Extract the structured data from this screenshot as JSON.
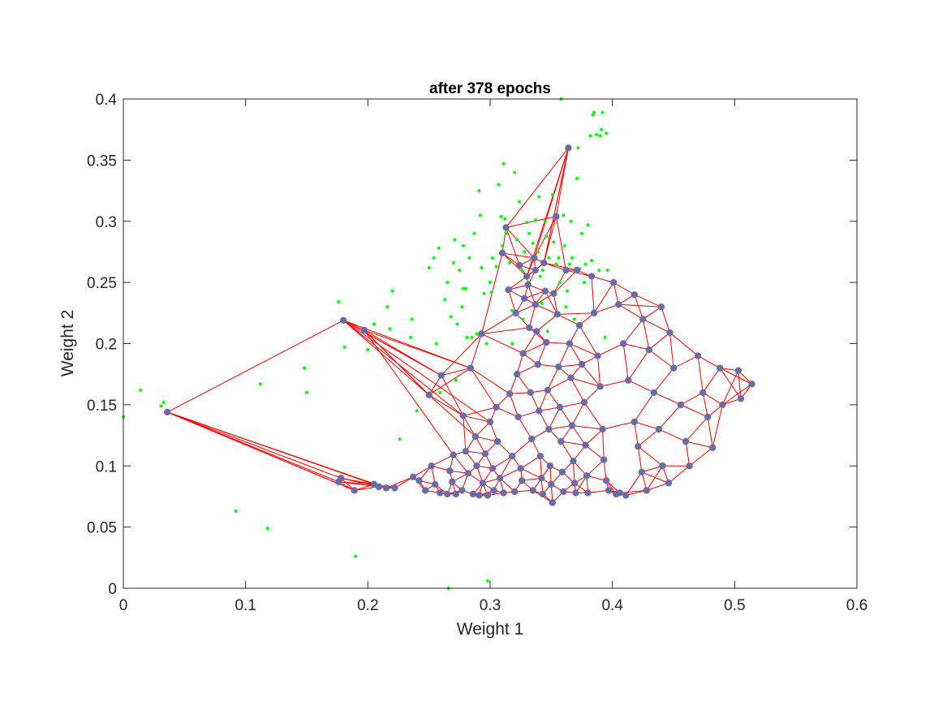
{
  "chart_data": {
    "type": "scatter",
    "title": "after 378 epochs",
    "xlabel": "Weight 1",
    "ylabel": "Weight 2",
    "xlim": [
      0,
      0.6
    ],
    "ylim": [
      0,
      0.4
    ],
    "xticks": [
      0,
      0.1,
      0.2,
      0.3,
      0.4,
      0.5,
      0.6
    ],
    "xtick_labels": [
      "0",
      "0.1",
      "0.2",
      "0.3",
      "0.4",
      "0.5",
      "0.6"
    ],
    "yticks": [
      0,
      0.05,
      0.1,
      0.15,
      0.2,
      0.25,
      0.3,
      0.35,
      0.4
    ],
    "ytick_labels": [
      "0",
      "0.05",
      "0.1",
      "0.15",
      "0.2",
      "0.25",
      "0.3",
      "0.35",
      "0.4"
    ],
    "grid": false,
    "colors": {
      "samples": "#00ff00",
      "neurons": "#6b6ba6",
      "links": "#ff0000",
      "axes": "#262626"
    },
    "samples": [
      [
        0.0,
        0.14
      ],
      [
        0.014,
        0.162
      ],
      [
        0.031,
        0.149
      ],
      [
        0.033,
        0.152
      ],
      [
        0.092,
        0.063
      ],
      [
        0.112,
        0.167
      ],
      [
        0.118,
        0.049
      ],
      [
        0.148,
        0.18
      ],
      [
        0.15,
        0.16
      ],
      [
        0.176,
        0.234
      ],
      [
        0.181,
        0.197
      ],
      [
        0.19,
        0.026
      ],
      [
        0.2,
        0.195
      ],
      [
        0.205,
        0.216
      ],
      [
        0.216,
        0.23
      ],
      [
        0.218,
        0.212
      ],
      [
        0.22,
        0.243
      ],
      [
        0.226,
        0.122
      ],
      [
        0.235,
        0.205
      ],
      [
        0.236,
        0.22
      ],
      [
        0.24,
        0.145
      ],
      [
        0.25,
        0.262
      ],
      [
        0.254,
        0.27
      ],
      [
        0.256,
        0.2
      ],
      [
        0.258,
        0.278
      ],
      [
        0.259,
        0.16
      ],
      [
        0.263,
        0.236
      ],
      [
        0.265,
        0.25
      ],
      [
        0.266,
        0.0
      ],
      [
        0.268,
        0.222
      ],
      [
        0.27,
        0.266
      ],
      [
        0.271,
        0.285
      ],
      [
        0.272,
        0.17
      ],
      [
        0.273,
        0.216
      ],
      [
        0.275,
        0.26
      ],
      [
        0.277,
        0.23
      ],
      [
        0.278,
        0.28
      ],
      [
        0.278,
        0.245
      ],
      [
        0.28,
        0.245
      ],
      [
        0.281,
        0.205
      ],
      [
        0.283,
        0.27
      ],
      [
        0.285,
        0.205
      ],
      [
        0.287,
        0.29
      ],
      [
        0.289,
        0.208
      ],
      [
        0.291,
        0.325
      ],
      [
        0.292,
        0.305
      ],
      [
        0.293,
        0.262
      ],
      [
        0.295,
        0.241
      ],
      [
        0.297,
        0.2
      ],
      [
        0.298,
        0.006
      ],
      [
        0.3,
        0.25
      ],
      [
        0.301,
        0.242
      ],
      [
        0.302,
        0.27
      ],
      [
        0.305,
        0.263
      ],
      [
        0.307,
        0.33
      ],
      [
        0.309,
        0.304
      ],
      [
        0.31,
        0.28
      ],
      [
        0.311,
        0.347
      ],
      [
        0.312,
        0.302
      ],
      [
        0.313,
        0.29
      ],
      [
        0.316,
        0.266
      ],
      [
        0.318,
        0.227
      ],
      [
        0.32,
        0.34
      ],
      [
        0.322,
        0.285
      ],
      [
        0.324,
        0.316
      ],
      [
        0.326,
        0.26
      ],
      [
        0.328,
        0.275
      ],
      [
        0.33,
        0.299
      ],
      [
        0.331,
        0.25
      ],
      [
        0.332,
        0.29
      ],
      [
        0.334,
        0.27
      ],
      [
        0.335,
        0.282
      ],
      [
        0.337,
        0.301
      ],
      [
        0.339,
        0.275
      ],
      [
        0.341,
        0.255
      ],
      [
        0.342,
        0.233
      ],
      [
        0.343,
        0.26
      ],
      [
        0.345,
        0.3
      ],
      [
        0.346,
        0.288
      ],
      [
        0.348,
        0.27
      ],
      [
        0.35,
        0.241
      ],
      [
        0.351,
        0.322
      ],
      [
        0.352,
        0.283
      ],
      [
        0.354,
        0.265
      ],
      [
        0.356,
        0.27
      ],
      [
        0.357,
        0.25
      ],
      [
        0.358,
        0.4
      ],
      [
        0.36,
        0.305
      ],
      [
        0.361,
        0.28
      ],
      [
        0.363,
        0.243
      ],
      [
        0.365,
        0.265
      ],
      [
        0.366,
        0.3
      ],
      [
        0.367,
        0.27
      ],
      [
        0.369,
        0.22
      ],
      [
        0.371,
        0.335
      ],
      [
        0.372,
        0.36
      ],
      [
        0.373,
        0.261
      ],
      [
        0.375,
        0.29
      ],
      [
        0.377,
        0.25
      ],
      [
        0.378,
        0.265
      ],
      [
        0.38,
        0.297
      ],
      [
        0.382,
        0.37
      ],
      [
        0.383,
        0.268
      ],
      [
        0.384,
        0.387
      ],
      [
        0.385,
        0.389
      ],
      [
        0.387,
        0.371
      ],
      [
        0.389,
        0.26
      ],
      [
        0.39,
        0.37
      ],
      [
        0.391,
        0.375
      ],
      [
        0.392,
        0.389
      ],
      [
        0.394,
        0.205
      ],
      [
        0.395,
        0.372
      ],
      [
        0.396,
        0.26
      ],
      [
        0.34,
        0.32
      ],
      [
        0.318,
        0.2
      ],
      [
        0.327,
        0.22
      ],
      [
        0.347,
        0.21
      ],
      [
        0.362,
        0.23
      ]
    ],
    "nodes": [
      [
        0.036,
        0.144
      ],
      [
        0.18,
        0.219
      ],
      [
        0.197,
        0.211
      ],
      [
        0.176,
        0.087
      ],
      [
        0.178,
        0.09
      ],
      [
        0.189,
        0.08
      ],
      [
        0.205,
        0.085
      ],
      [
        0.209,
        0.083
      ],
      [
        0.215,
        0.082
      ],
      [
        0.222,
        0.082
      ],
      [
        0.237,
        0.091
      ],
      [
        0.242,
        0.088
      ],
      [
        0.247,
        0.08
      ],
      [
        0.25,
        0.158
      ],
      [
        0.252,
        0.1
      ],
      [
        0.255,
        0.085
      ],
      [
        0.259,
        0.078
      ],
      [
        0.26,
        0.174
      ],
      [
        0.265,
        0.077
      ],
      [
        0.267,
        0.096
      ],
      [
        0.269,
        0.087
      ],
      [
        0.27,
        0.109
      ],
      [
        0.272,
        0.077
      ],
      [
        0.277,
        0.08
      ],
      [
        0.278,
        0.141
      ],
      [
        0.28,
        0.112
      ],
      [
        0.282,
        0.094
      ],
      [
        0.284,
        0.18
      ],
      [
        0.286,
        0.077
      ],
      [
        0.288,
        0.124
      ],
      [
        0.289,
        0.1
      ],
      [
        0.291,
        0.076
      ],
      [
        0.293,
        0.208
      ],
      [
        0.294,
        0.086
      ],
      [
        0.296,
        0.11
      ],
      [
        0.298,
        0.076
      ],
      [
        0.3,
        0.136
      ],
      [
        0.302,
        0.098
      ],
      [
        0.303,
        0.08
      ],
      [
        0.305,
        0.148
      ],
      [
        0.306,
        0.12
      ],
      [
        0.308,
        0.09
      ],
      [
        0.31,
        0.274
      ],
      [
        0.311,
        0.078
      ],
      [
        0.313,
        0.295
      ],
      [
        0.315,
        0.244
      ],
      [
        0.316,
        0.159
      ],
      [
        0.318,
        0.108
      ],
      [
        0.32,
        0.079
      ],
      [
        0.321,
        0.225
      ],
      [
        0.322,
        0.175
      ],
      [
        0.323,
        0.14
      ],
      [
        0.324,
        0.264
      ],
      [
        0.325,
        0.098
      ],
      [
        0.326,
        0.088
      ],
      [
        0.327,
        0.192
      ],
      [
        0.328,
        0.237
      ],
      [
        0.33,
        0.255
      ],
      [
        0.331,
        0.248
      ],
      [
        0.332,
        0.213
      ],
      [
        0.333,
        0.16
      ],
      [
        0.334,
        0.122
      ],
      [
        0.335,
        0.08
      ],
      [
        0.336,
        0.27
      ],
      [
        0.337,
        0.26
      ],
      [
        0.337,
        0.232
      ],
      [
        0.338,
        0.21
      ],
      [
        0.339,
        0.183
      ],
      [
        0.34,
        0.145
      ],
      [
        0.341,
        0.108
      ],
      [
        0.342,
        0.09
      ],
      [
        0.343,
        0.077
      ],
      [
        0.344,
        0.266
      ],
      [
        0.345,
        0.243
      ],
      [
        0.346,
        0.201
      ],
      [
        0.347,
        0.162
      ],
      [
        0.348,
        0.13
      ],
      [
        0.349,
        0.1
      ],
      [
        0.35,
        0.085
      ],
      [
        0.351,
        0.07
      ],
      [
        0.352,
        0.241
      ],
      [
        0.354,
        0.304
      ],
      [
        0.355,
        0.224
      ],
      [
        0.356,
        0.181
      ],
      [
        0.357,
        0.148
      ],
      [
        0.358,
        0.12
      ],
      [
        0.359,
        0.095
      ],
      [
        0.36,
        0.079
      ],
      [
        0.362,
        0.26
      ],
      [
        0.364,
        0.36
      ],
      [
        0.365,
        0.2
      ],
      [
        0.366,
        0.172
      ],
      [
        0.367,
        0.133
      ],
      [
        0.368,
        0.104
      ],
      [
        0.369,
        0.086
      ],
      [
        0.37,
        0.078
      ],
      [
        0.371,
        0.26
      ],
      [
        0.373,
        0.215
      ],
      [
        0.375,
        0.183
      ],
      [
        0.377,
        0.152
      ],
      [
        0.378,
        0.117
      ],
      [
        0.379,
        0.092
      ],
      [
        0.38,
        0.078
      ],
      [
        0.383,
        0.255
      ],
      [
        0.385,
        0.225
      ],
      [
        0.388,
        0.19
      ],
      [
        0.39,
        0.165
      ],
      [
        0.392,
        0.13
      ],
      [
        0.393,
        0.105
      ],
      [
        0.395,
        0.088
      ],
      [
        0.397,
        0.08
      ],
      [
        0.403,
        0.077
      ],
      [
        0.406,
        0.078
      ],
      [
        0.411,
        0.076
      ],
      [
        0.401,
        0.25
      ],
      [
        0.405,
        0.232
      ],
      [
        0.409,
        0.2
      ],
      [
        0.413,
        0.17
      ],
      [
        0.418,
        0.136
      ],
      [
        0.421,
        0.116
      ],
      [
        0.424,
        0.095
      ],
      [
        0.428,
        0.08
      ],
      [
        0.418,
        0.24
      ],
      [
        0.425,
        0.22
      ],
      [
        0.43,
        0.195
      ],
      [
        0.434,
        0.16
      ],
      [
        0.438,
        0.13
      ],
      [
        0.441,
        0.1
      ],
      [
        0.446,
        0.086
      ],
      [
        0.44,
        0.23
      ],
      [
        0.447,
        0.209
      ],
      [
        0.45,
        0.18
      ],
      [
        0.456,
        0.15
      ],
      [
        0.46,
        0.12
      ],
      [
        0.463,
        0.1
      ],
      [
        0.47,
        0.19
      ],
      [
        0.474,
        0.16
      ],
      [
        0.478,
        0.14
      ],
      [
        0.482,
        0.115
      ],
      [
        0.488,
        0.18
      ],
      [
        0.49,
        0.15
      ],
      [
        0.503,
        0.178
      ],
      [
        0.505,
        0.155
      ],
      [
        0.514,
        0.167
      ]
    ]
  }
}
